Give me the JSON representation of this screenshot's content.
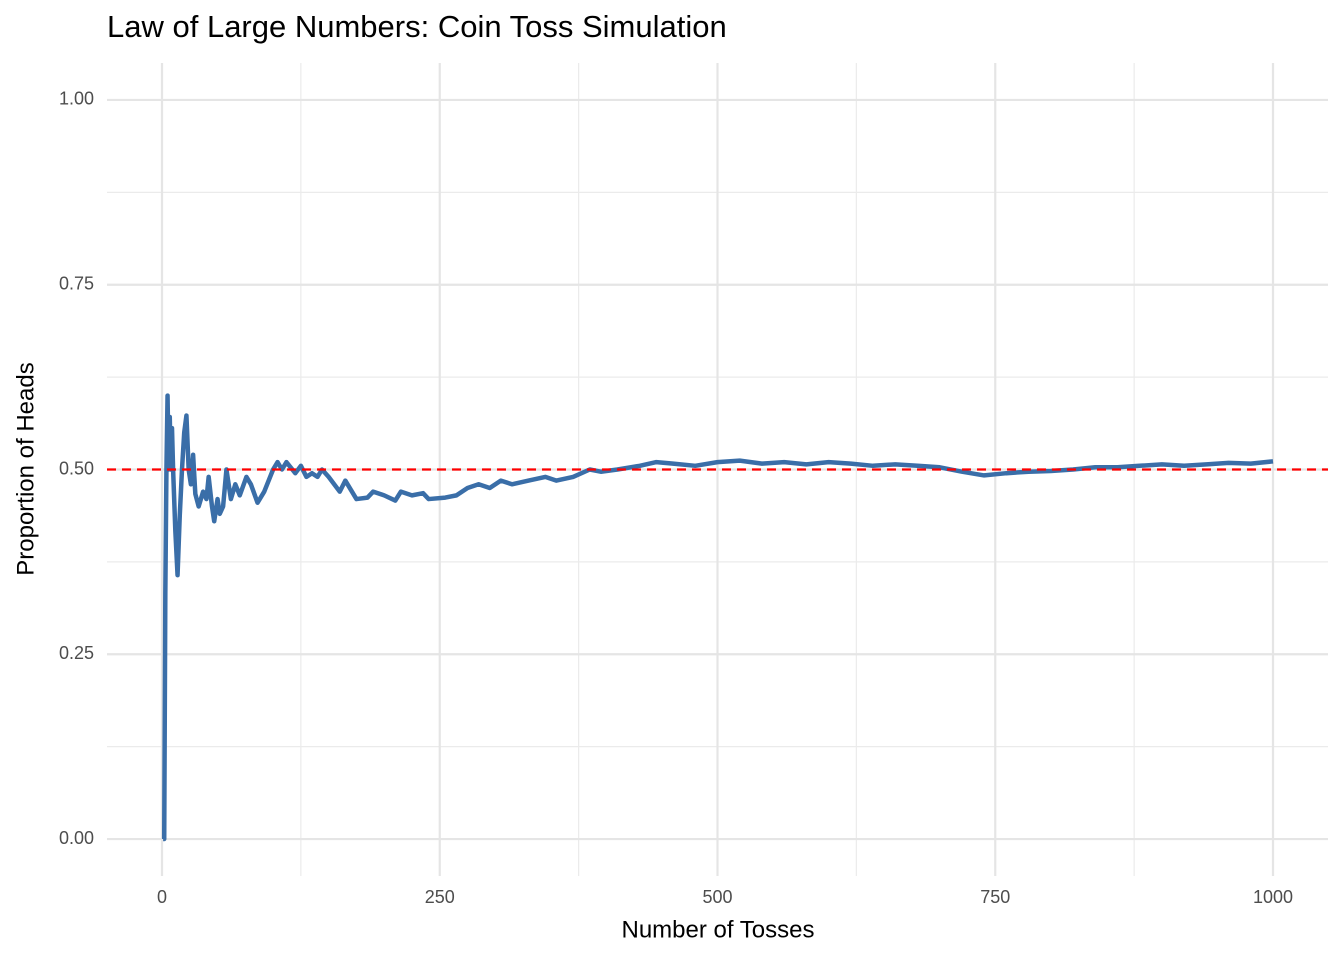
{
  "chart_data": {
    "type": "line",
    "title": "Law of Large Numbers: Coin Toss Simulation",
    "xlabel": "Number of Tosses",
    "ylabel": "Proportion of Heads",
    "x": [
      1,
      2,
      3,
      4,
      5,
      6,
      7,
      8,
      9,
      10,
      12,
      14,
      16,
      18,
      20,
      22,
      24,
      26,
      28,
      30,
      33,
      37,
      40,
      42,
      45,
      47,
      50,
      52,
      55,
      58,
      62,
      66,
      70,
      76,
      80,
      86,
      92,
      100,
      104,
      108,
      112,
      120,
      125,
      130,
      135,
      140,
      144,
      150,
      160,
      165,
      175,
      185,
      190,
      200,
      210,
      215,
      225,
      235,
      240,
      255,
      265,
      275,
      285,
      295,
      305,
      315,
      330,
      345,
      355,
      370,
      385,
      395,
      410,
      430,
      445,
      460,
      480,
      500,
      520,
      540,
      560,
      580,
      600,
      620,
      640,
      660,
      680,
      700,
      720,
      740,
      760,
      780,
      800,
      820,
      840,
      860,
      880,
      900,
      920,
      940,
      960,
      980,
      1000
    ],
    "series": [
      {
        "name": "Proportion of Heads",
        "color": "#3a6ea8",
        "values": [
          0,
          0,
          0.333,
          0.5,
          0.6,
          0.5,
          0.571,
          0.5,
          0.556,
          0.5,
          0.417,
          0.357,
          0.438,
          0.5,
          0.55,
          0.573,
          0.5,
          0.48,
          0.52,
          0.467,
          0.45,
          0.47,
          0.46,
          0.49,
          0.45,
          0.43,
          0.46,
          0.44,
          0.45,
          0.5,
          0.46,
          0.48,
          0.465,
          0.49,
          0.48,
          0.455,
          0.47,
          0.5,
          0.51,
          0.5,
          0.51,
          0.495,
          0.505,
          0.49,
          0.495,
          0.49,
          0.5,
          0.49,
          0.47,
          0.485,
          0.46,
          0.462,
          0.47,
          0.465,
          0.458,
          0.47,
          0.465,
          0.468,
          0.46,
          0.462,
          0.465,
          0.475,
          0.48,
          0.475,
          0.485,
          0.48,
          0.485,
          0.49,
          0.485,
          0.49,
          0.5,
          0.497,
          0.5,
          0.505,
          0.51,
          0.508,
          0.505,
          0.51,
          0.512,
          0.508,
          0.51,
          0.507,
          0.51,
          0.508,
          0.505,
          0.507,
          0.505,
          0.503,
          0.497,
          0.492,
          0.495,
          0.497,
          0.498,
          0.5,
          0.503,
          0.503,
          0.505,
          0.507,
          0.505,
          0.507,
          0.509,
          0.508,
          0.511
        ]
      }
    ],
    "hline": {
      "value": 0.5,
      "color": "#ff0000"
    },
    "xlim": [
      -49.5,
      1049.5
    ],
    "ylim": [
      -0.05,
      1.05
    ],
    "xticks": [
      0,
      250,
      500,
      750,
      1000
    ],
    "yticks": [
      {
        "value": 0,
        "label": "0.00"
      },
      {
        "value": 0.25,
        "label": "0.25"
      },
      {
        "value": 0.5,
        "label": "0.50"
      },
      {
        "value": 0.75,
        "label": "0.75"
      },
      {
        "value": 1,
        "label": "1.00"
      }
    ],
    "grid": true
  }
}
